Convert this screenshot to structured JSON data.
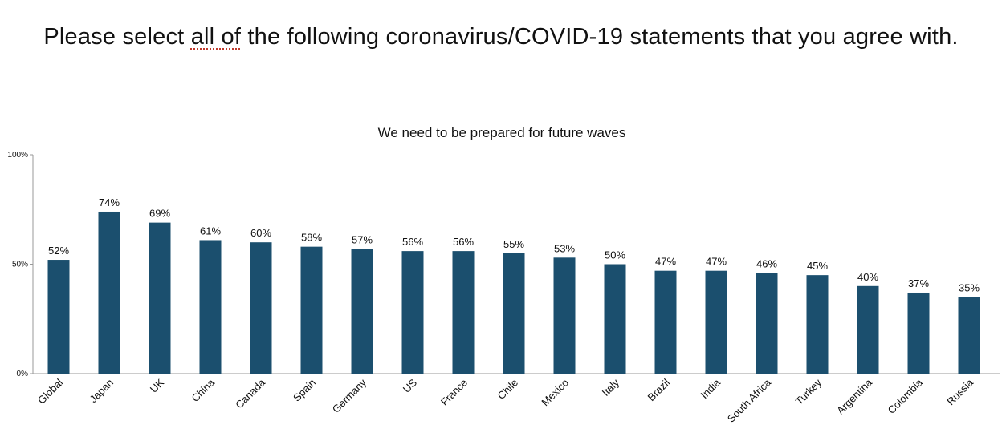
{
  "heading": {
    "before": "Please select ",
    "emphasis": "all of",
    "after": " the following coronavirus/COVID-19 statements that you agree with."
  },
  "colors": {
    "bar": "#1b4f6e",
    "axis": "#999999",
    "text": "#111111"
  },
  "chart_data": {
    "type": "bar",
    "title": "We need to be prepared for future waves",
    "xlabel": "",
    "ylabel": "",
    "ylim": [
      0,
      100
    ],
    "yticks": [
      {
        "value": 0,
        "label": "0%"
      },
      {
        "value": 50,
        "label": "50%"
      },
      {
        "value": 100,
        "label": "100%"
      }
    ],
    "grid": false,
    "categories": [
      "Global",
      "Japan",
      "UK",
      "China",
      "Canada",
      "Spain",
      "Germany",
      "US",
      "France",
      "Chile",
      "Mexico",
      "Italy",
      "Brazil",
      "India",
      "South Africa",
      "Turkey",
      "Argentina",
      "Colombia",
      "Russia"
    ],
    "values": [
      52,
      74,
      69,
      61,
      60,
      58,
      57,
      56,
      56,
      55,
      53,
      50,
      47,
      47,
      46,
      45,
      40,
      37,
      35
    ],
    "value_labels": [
      "52%",
      "74%",
      "69%",
      "61%",
      "60%",
      "58%",
      "57%",
      "56%",
      "56%",
      "55%",
      "53%",
      "50%",
      "47%",
      "47%",
      "46%",
      "45%",
      "40%",
      "37%",
      "35%"
    ]
  }
}
